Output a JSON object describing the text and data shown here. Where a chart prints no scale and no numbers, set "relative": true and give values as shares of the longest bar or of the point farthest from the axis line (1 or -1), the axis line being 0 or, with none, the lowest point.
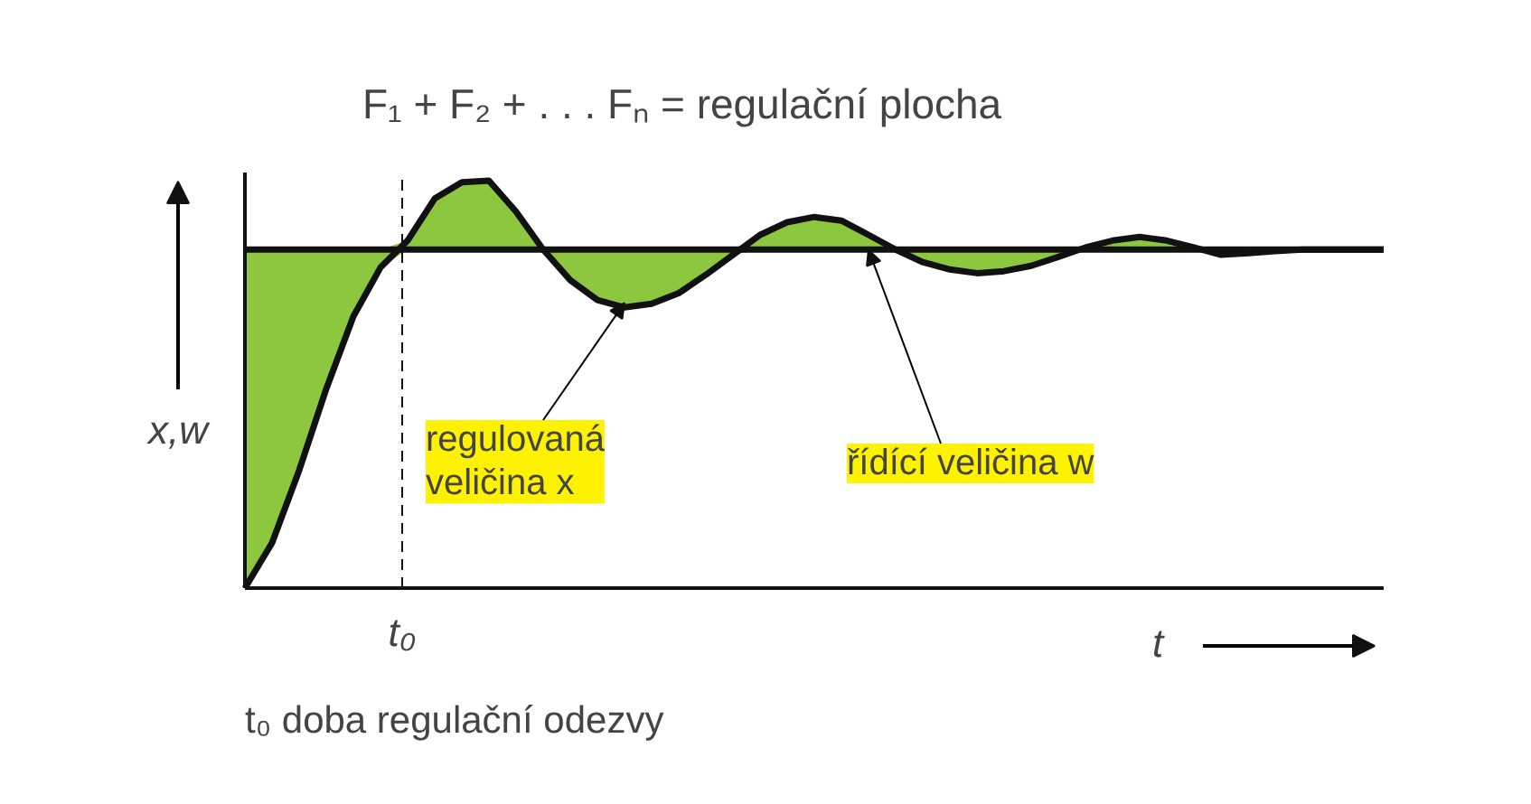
{
  "chart_data": {
    "type": "line",
    "relative": true,
    "title": "F₁ + F₂ + . . . Fₙ = regulační plocha",
    "xlabel": "t",
    "ylabel": "x,w",
    "categories": [
      null,
      null,
      null,
      null,
      null,
      null,
      null,
      null,
      null,
      null,
      null,
      null,
      null,
      null,
      null,
      null,
      null,
      null,
      null,
      null,
      null,
      null,
      null,
      null,
      null,
      null,
      null,
      null,
      null,
      null,
      null,
      null,
      null,
      null,
      null,
      null,
      null,
      null,
      null,
      null,
      null,
      null,
      null
    ],
    "series": [
      {
        "name": "regulovaná veličina x",
        "color": "#111111",
        "values": [
          0,
          0.111,
          0.289,
          0.489,
          0.667,
          0.787,
          0.853,
          0.956,
          0.996,
          1,
          0.924,
          0.831,
          0.756,
          0.707,
          0.689,
          0.698,
          0.724,
          0.769,
          0.818,
          0.867,
          0.898,
          0.911,
          0.902,
          0.867,
          0.831,
          0.8,
          0.782,
          0.773,
          0.778,
          0.791,
          0.813,
          0.836,
          0.853,
          0.862,
          0.853,
          0.836,
          0.818,
          0.822,
          0.827,
          0.831,
          0.831,
          0.831,
          0.831
        ]
      },
      {
        "name": "řídící veličina w",
        "color": "#111111",
        "values": [
          0.831,
          0.831,
          0.831,
          0.831,
          0.831,
          0.831,
          0.831,
          0.831,
          0.831,
          0.831,
          0.831,
          0.831,
          0.831,
          0.831,
          0.831,
          0.831,
          0.831,
          0.831,
          0.831,
          0.831,
          0.831,
          0.831,
          0.831,
          0.831,
          0.831,
          0.831,
          0.831,
          0.831,
          0.831,
          0.831,
          0.831,
          0.831,
          0.831,
          0.831,
          0.831,
          0.831,
          0.831,
          0.831,
          0.831,
          0.831,
          0.831,
          0.831,
          0.831
        ]
      }
    ],
    "annotations": [
      "t₀",
      "t₀ doba regulační odezvy"
    ]
  }
}
